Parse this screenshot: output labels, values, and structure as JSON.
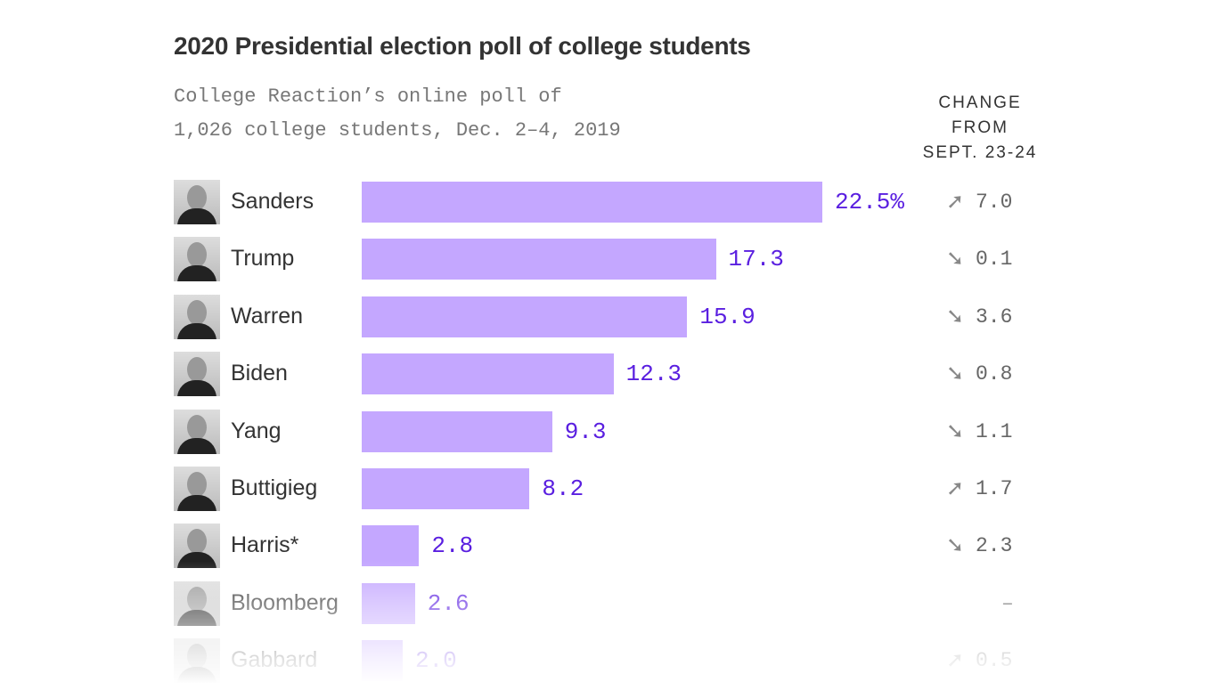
{
  "chart_data": {
    "type": "bar",
    "orientation": "horizontal",
    "title": "2020 Presidential election poll of college students",
    "subtitle_lines": [
      "College Reaction’s online poll of",
      "1,026 college students, Dec. 2–4, 2019"
    ],
    "change_header": [
      "CHANGE",
      "FROM",
      "SEPT. 23-24"
    ],
    "bar_color": "#c4a7ff",
    "value_color": "#5a1fe0",
    "xlim": [
      0,
      22.5
    ],
    "categories": [
      "Sanders",
      "Trump",
      "Warren",
      "Biden",
      "Yang",
      "Buttigieg",
      "Harris*",
      "Bloomberg",
      "Gabbard"
    ],
    "values": [
      22.5,
      17.3,
      15.9,
      12.3,
      9.3,
      8.2,
      2.8,
      2.6,
      2.0
    ],
    "value_labels": [
      "22.5%",
      "17.3",
      "15.9",
      "12.3",
      "9.3",
      "8.2",
      "2.8",
      "2.6",
      "2.0"
    ],
    "change_direction": [
      "up",
      "down",
      "down",
      "down",
      "down",
      "up",
      "down",
      "none",
      "up"
    ],
    "change_labels": [
      "7.0",
      "0.1",
      "3.6",
      "0.8",
      "1.1",
      "1.7",
      "2.3",
      "–",
      "0.5"
    ]
  }
}
